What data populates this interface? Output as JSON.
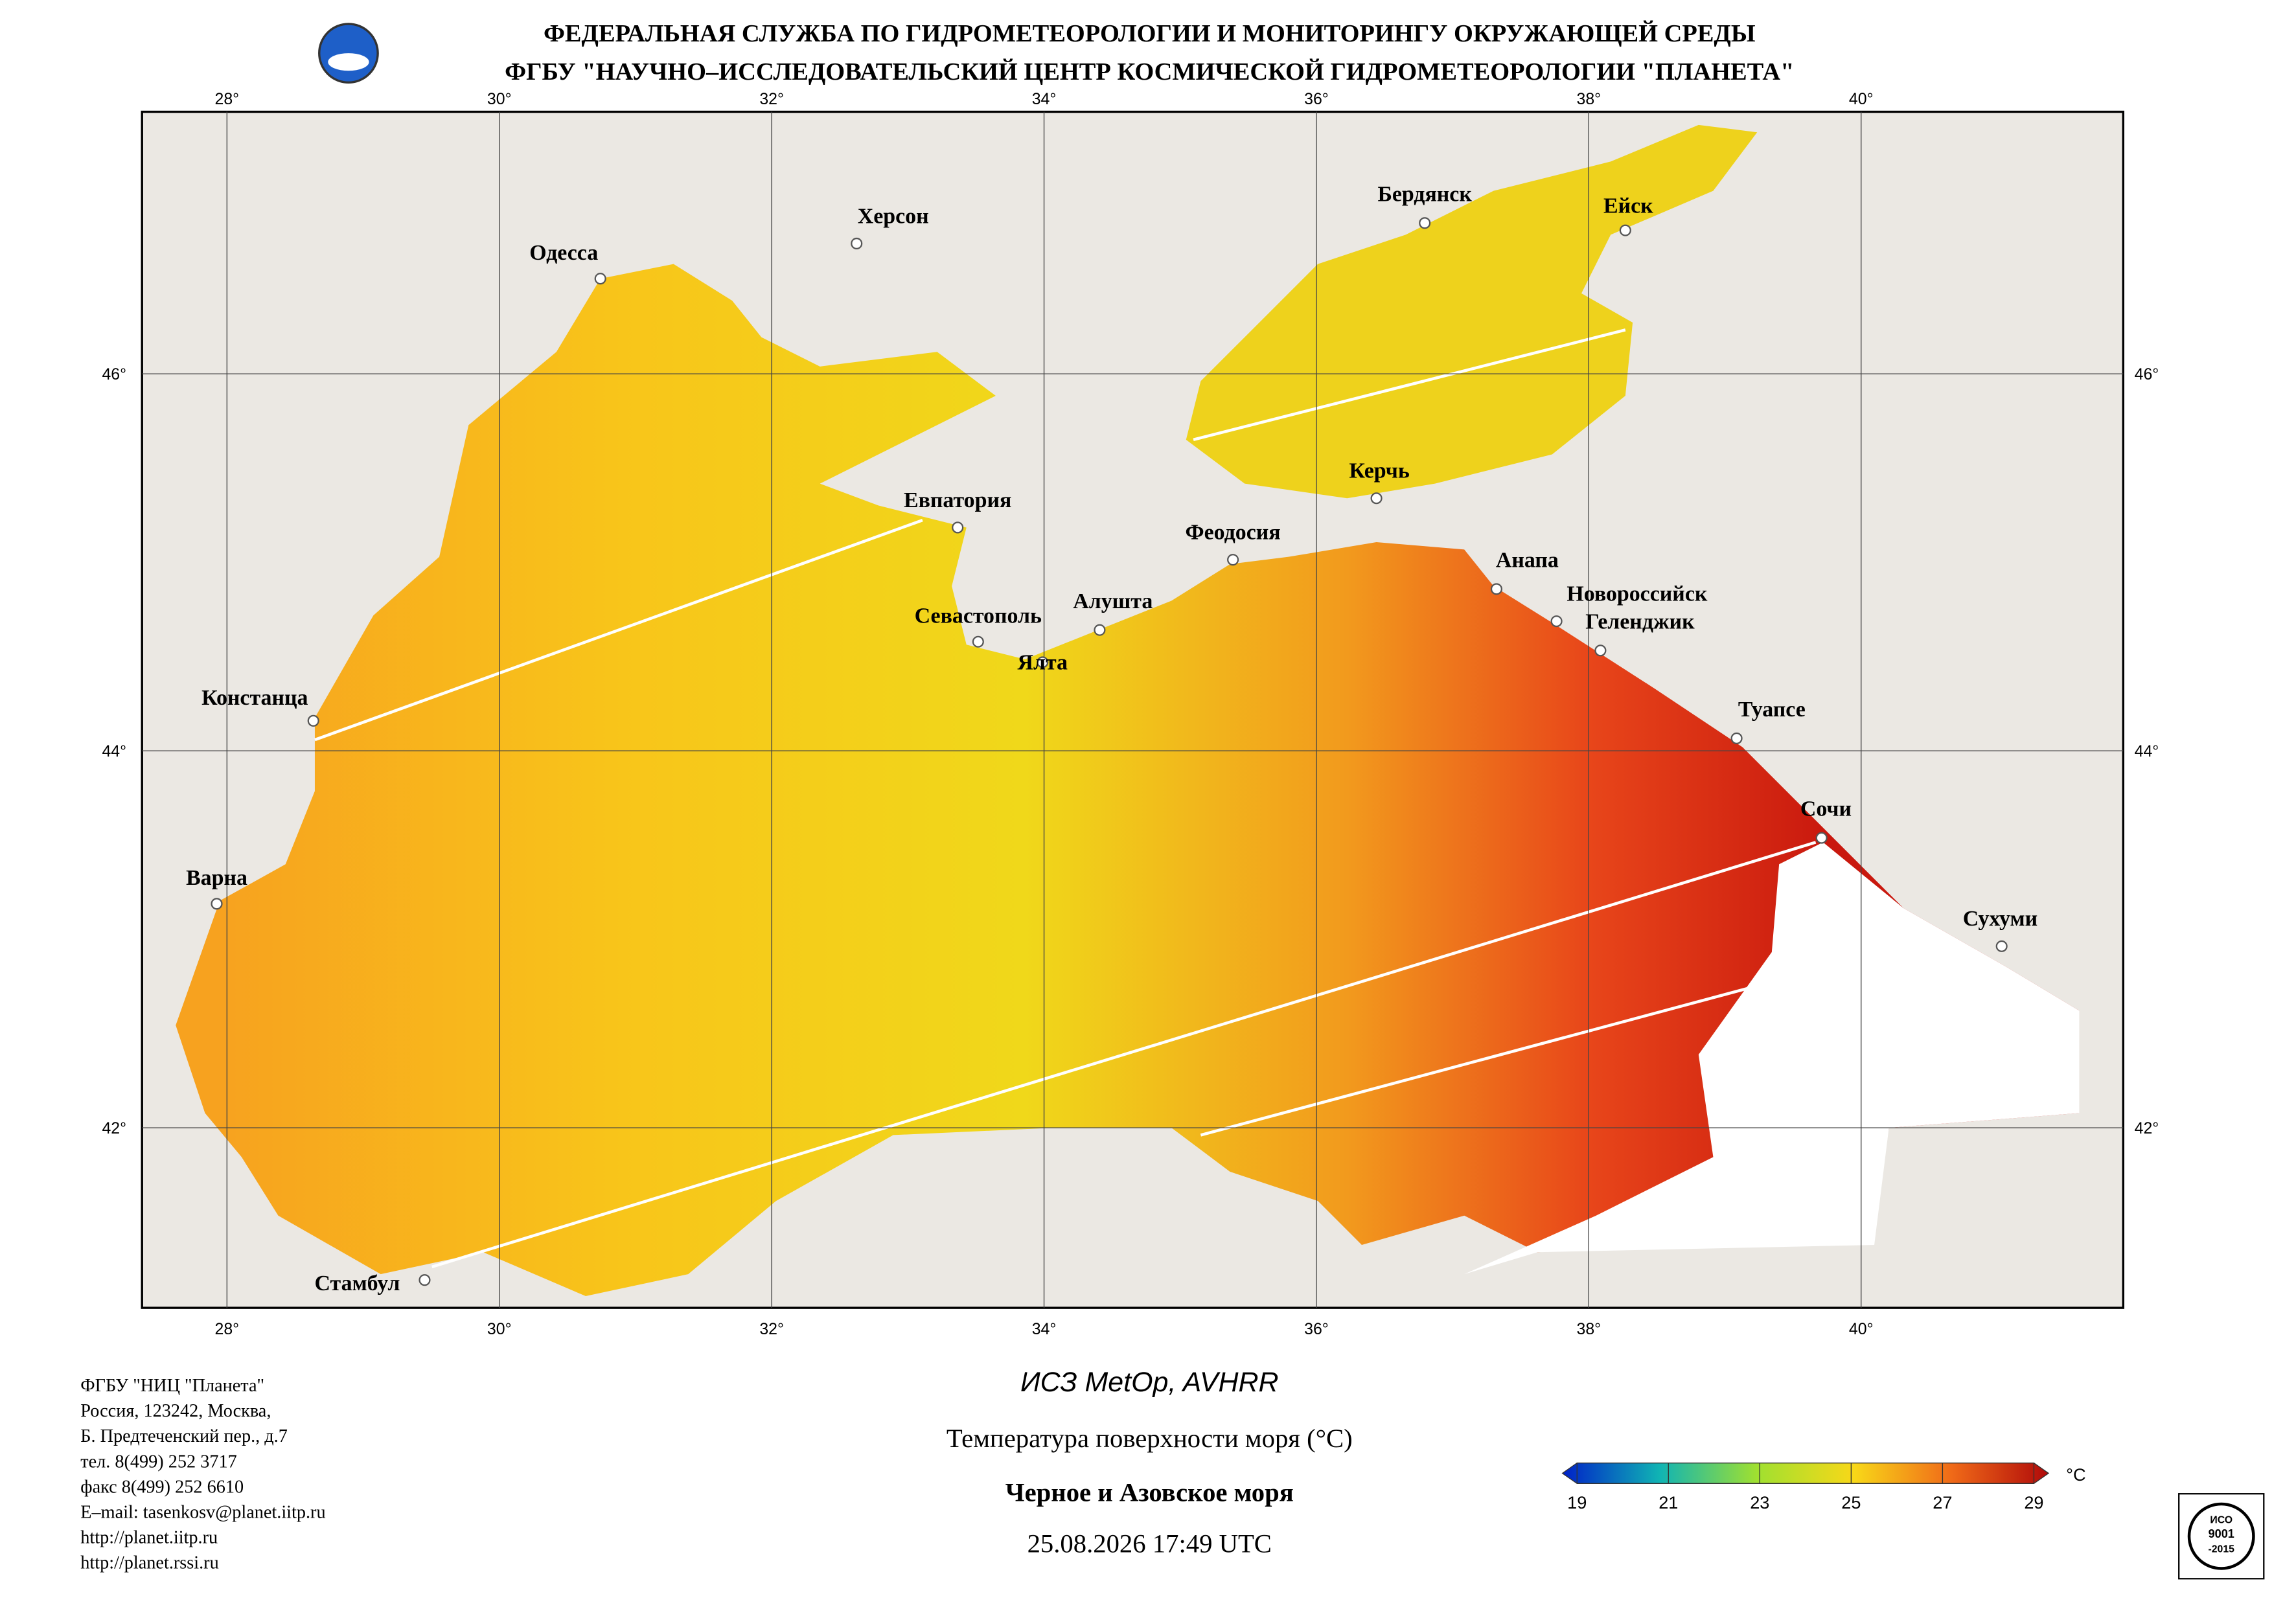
{
  "header": {
    "line1": "ФЕДЕРАЛЬНАЯ СЛУЖБА ПО ГИДРОМЕТЕОРОЛОГИИ И МОНИТОРИНГУ ОКРУЖАЮЩЕЙ СРЕДЫ",
    "line2": "ФГБУ \"НАУЧНО–ИССЛЕДОВАТЕЛЬСКИЙ ЦЕНТР КОСМИЧЕСКОЙ ГИДРОМЕТЕОРОЛОГИИ \"ПЛАНЕТА\""
  },
  "map": {
    "lon_ticks": [
      {
        "value": 28,
        "label": "28°"
      },
      {
        "value": 30,
        "label": "30°"
      },
      {
        "value": 32,
        "label": "32°"
      },
      {
        "value": 34,
        "label": "34°"
      },
      {
        "value": 36,
        "label": "36°"
      },
      {
        "value": 38,
        "label": "38°"
      },
      {
        "value": 40,
        "label": "40°"
      }
    ],
    "lat_ticks": [
      {
        "value": 46,
        "label": "46°"
      },
      {
        "value": 44,
        "label": "44°"
      },
      {
        "value": 42,
        "label": "42°"
      }
    ],
    "cities": [
      "Одесса",
      "Херсон",
      "Бердянск",
      "Ейск",
      "Евпатория",
      "Керчь",
      "Феодосия",
      "Анапа",
      "Новороссийск",
      "Геленджик",
      "Севастополь",
      "Алушта",
      "Ялта",
      "Констанца",
      "Туапсе",
      "Сочи",
      "Варна",
      "Сухуми",
      "Стамбул"
    ]
  },
  "colorbar": {
    "range": [
      19,
      29
    ],
    "ticks": [
      19,
      21,
      23,
      25,
      27,
      29
    ],
    "unit": "°C"
  },
  "caption": {
    "satellite": "ИСЗ MetOp, AVHRR",
    "parameter": "Температура поверхности моря (°C)",
    "region": "Черное и Азовское моря",
    "datetime": "25.08.2026 17:49 UTC"
  },
  "address": [
    "ФГБУ \"НИЦ \"Планета\"",
    "Россия, 123242, Москва,",
    "Б. Предтеченский пер., д.7",
    "тел. 8(499) 252 3717",
    "факс 8(499) 252 6610",
    "E–mail: tasenkosv@planet.iitp.ru",
    "http://planet.iitp.ru",
    "http://planet.rssi.ru"
  ],
  "certificate": {
    "line1": "ИСО",
    "line2": "9001",
    "line3": "-2015"
  }
}
